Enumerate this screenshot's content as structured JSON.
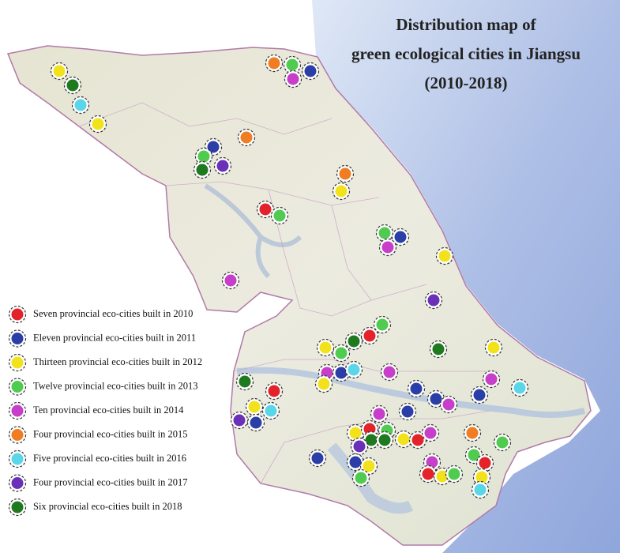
{
  "title": [
    "Distribution map of",
    "green ecological cities in Jiangsu",
    "(2010-2018)"
  ],
  "legend": [
    {
      "label": "Seven provincial eco-cities built in 2010",
      "color": "#e3222a"
    },
    {
      "label": "Eleven provincial eco-cities built in 2011",
      "color": "#2b3ea8"
    },
    {
      "label": "Thirteen provincial eco-cities built in 2012",
      "color": "#f2e21c"
    },
    {
      "label": "Twelve provincial eco-cities built in 2013",
      "color": "#4fcb4f"
    },
    {
      "label": "Ten provincial eco-cities built in 2014",
      "color": "#c73fc9"
    },
    {
      "label": "Four provincial eco-cities built in 2015",
      "color": "#f07d22"
    },
    {
      "label": "Five provincial eco-cities built in 2016",
      "color": "#5ad6e8"
    },
    {
      "label": "Four provincial eco-cities built in 2017",
      "color": "#6a30b8"
    },
    {
      "label": "Six provincial eco-cities built in 2018",
      "color": "#1f7a1f"
    }
  ]
}
